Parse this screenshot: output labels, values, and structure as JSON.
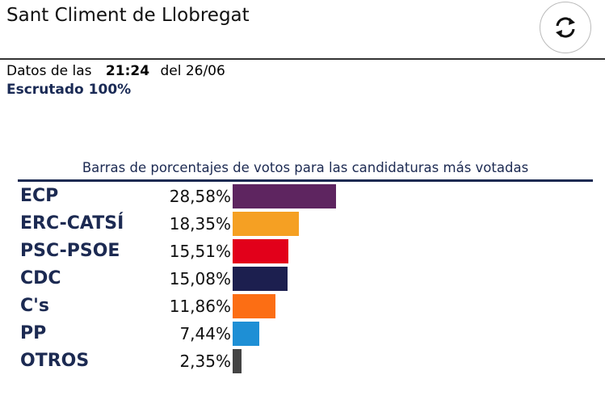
{
  "header": {
    "title": "Sant Climent de Llobregat",
    "refresh_icon": "refresh-icon"
  },
  "info": {
    "datos_prefix": "Datos de las",
    "time": "21:24",
    "date_text": "del 26/06",
    "escrutado": "Escrutado 100%"
  },
  "chart_data": {
    "type": "bar",
    "orientation": "horizontal",
    "title": "Barras de porcentajes de votos para las candidaturas más votadas",
    "categories": [
      "ECP",
      "ERC-CATSÍ",
      "PSC-PSOE",
      "CDC",
      "C's",
      "PP",
      "OTROS"
    ],
    "values": [
      28.58,
      18.35,
      15.51,
      15.08,
      11.86,
      7.44,
      2.35
    ],
    "value_labels": [
      "28,58%",
      "18,35%",
      "15,51%",
      "15,08%",
      "11,86%",
      "7,44%",
      "2,35%"
    ],
    "colors": [
      "#5e2560",
      "#f5a023",
      "#e2001a",
      "#1c1f4f",
      "#fc6e14",
      "#1e8fd5",
      "#444444"
    ],
    "xlim": [
      0,
      100
    ],
    "grid": false
  }
}
